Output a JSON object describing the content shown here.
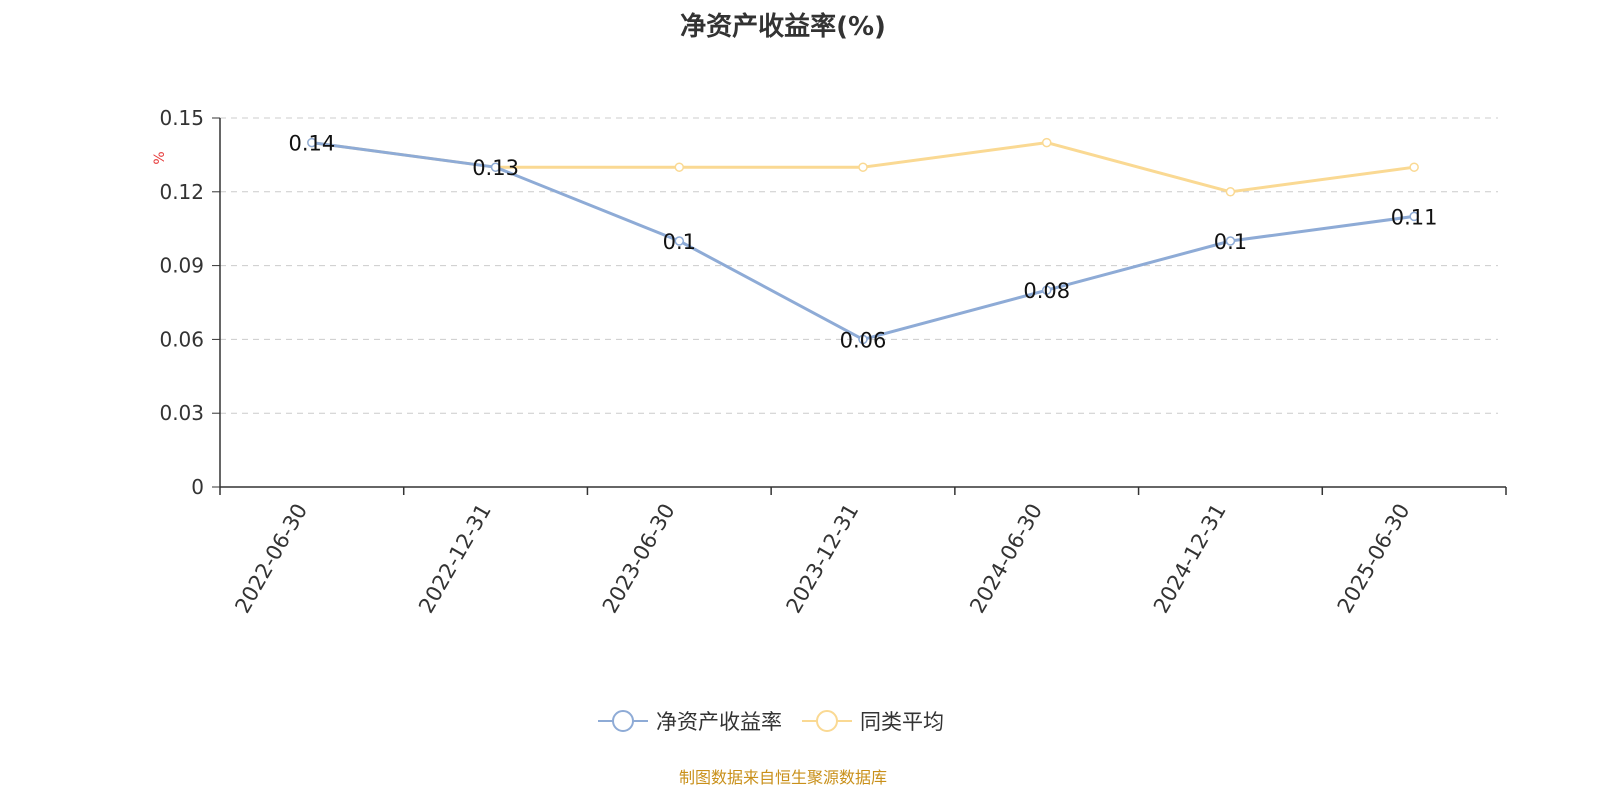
{
  "chart_data": {
    "type": "line",
    "title": "净资产收益率(%)",
    "ylabel": "%",
    "categories": [
      "2022-06-30",
      "2022-12-31",
      "2023-06-30",
      "2023-12-31",
      "2024-06-30",
      "2024-12-31",
      "2025-06-30"
    ],
    "ylim": [
      0,
      0.15
    ],
    "yticks": [
      "0",
      "0.03",
      "0.06",
      "0.09",
      "0.12",
      "0.15"
    ],
    "grid": true,
    "legend_position": "bottom",
    "series": [
      {
        "name": "净资产收益率",
        "values": [
          0.14,
          0.13,
          0.1,
          0.06,
          0.08,
          0.1,
          0.11
        ],
        "data_labels": [
          "0.14",
          "0.13",
          "0.1",
          "0.06",
          "0.08",
          "0.1",
          "0.11"
        ],
        "color": "#8eabd6"
      },
      {
        "name": "同类平均",
        "values": [
          0.14,
          0.13,
          0.13,
          0.13,
          0.14,
          0.12,
          0.13
        ],
        "color": "#fad993"
      }
    ]
  },
  "source_text": "制图数据来自恒生聚源数据库",
  "colors": {
    "axis": "#333333",
    "grid": "#cccccc",
    "ylabel": "#e63b3b",
    "source": "#c9901a"
  }
}
